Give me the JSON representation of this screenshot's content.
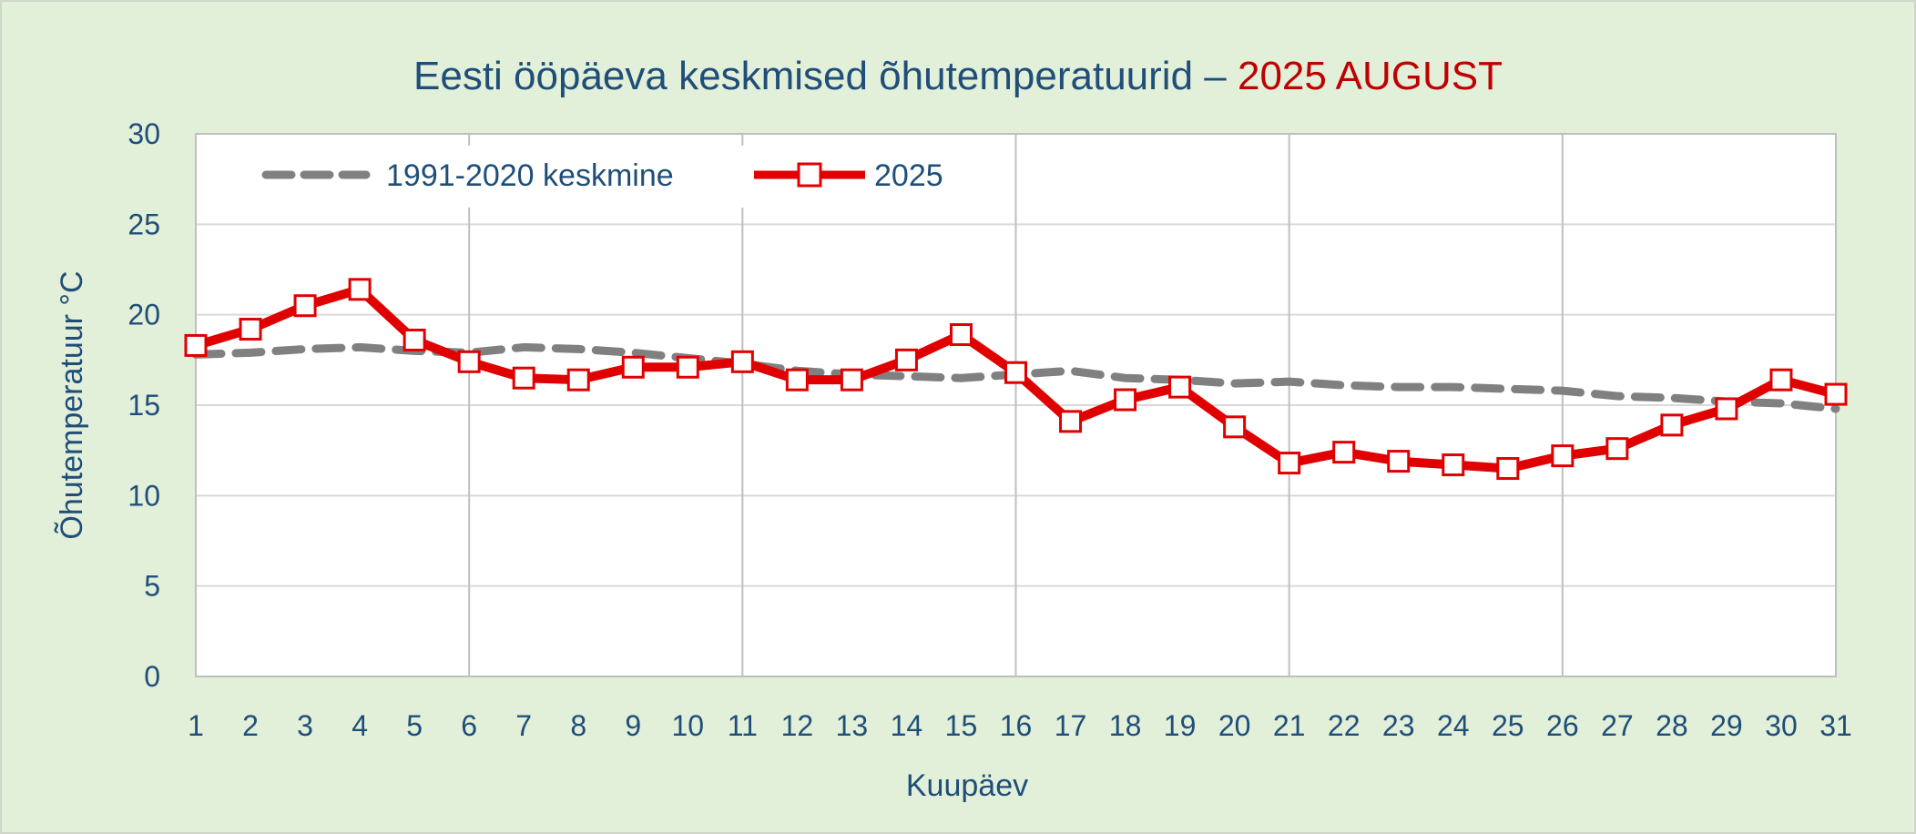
{
  "chart_data": {
    "type": "line",
    "title": "Eesti ööpäeva keskmised õhutemperatuurid – ",
    "title_highlight": "2025 AUGUST",
    "xlabel": "Kuupäev",
    "ylabel": "Õhutemperatuur °C",
    "ylim": [
      0,
      30
    ],
    "yticks": [
      0,
      5,
      10,
      15,
      20,
      25,
      30
    ],
    "x": [
      1,
      2,
      3,
      4,
      5,
      6,
      7,
      8,
      9,
      10,
      11,
      12,
      13,
      14,
      15,
      16,
      17,
      18,
      19,
      20,
      21,
      22,
      23,
      24,
      25,
      26,
      27,
      28,
      29,
      30,
      31
    ],
    "grid": true,
    "legend_placement": "top-left",
    "series": [
      {
        "name": "1991-2020 keskmine",
        "style": "dashed",
        "color": "#808080",
        "values": [
          17.8,
          17.9,
          18.1,
          18.2,
          18.0,
          17.9,
          18.2,
          18.1,
          17.9,
          17.6,
          17.3,
          16.9,
          16.7,
          16.6,
          16.5,
          16.7,
          16.9,
          16.5,
          16.4,
          16.2,
          16.3,
          16.1,
          16.0,
          16.0,
          15.9,
          15.8,
          15.5,
          15.4,
          15.2,
          15.1,
          14.8
        ]
      },
      {
        "name": "2025",
        "style": "solid-square-markers",
        "color": "#e00000",
        "values": [
          18.3,
          19.2,
          20.5,
          21.4,
          18.6,
          17.4,
          16.5,
          16.4,
          17.1,
          17.1,
          17.4,
          16.4,
          16.4,
          17.5,
          18.9,
          16.8,
          14.1,
          15.3,
          16.0,
          13.8,
          11.8,
          12.4,
          11.9,
          11.7,
          11.5,
          12.2,
          12.6,
          13.9,
          14.8,
          16.4,
          15.6
        ]
      }
    ]
  }
}
